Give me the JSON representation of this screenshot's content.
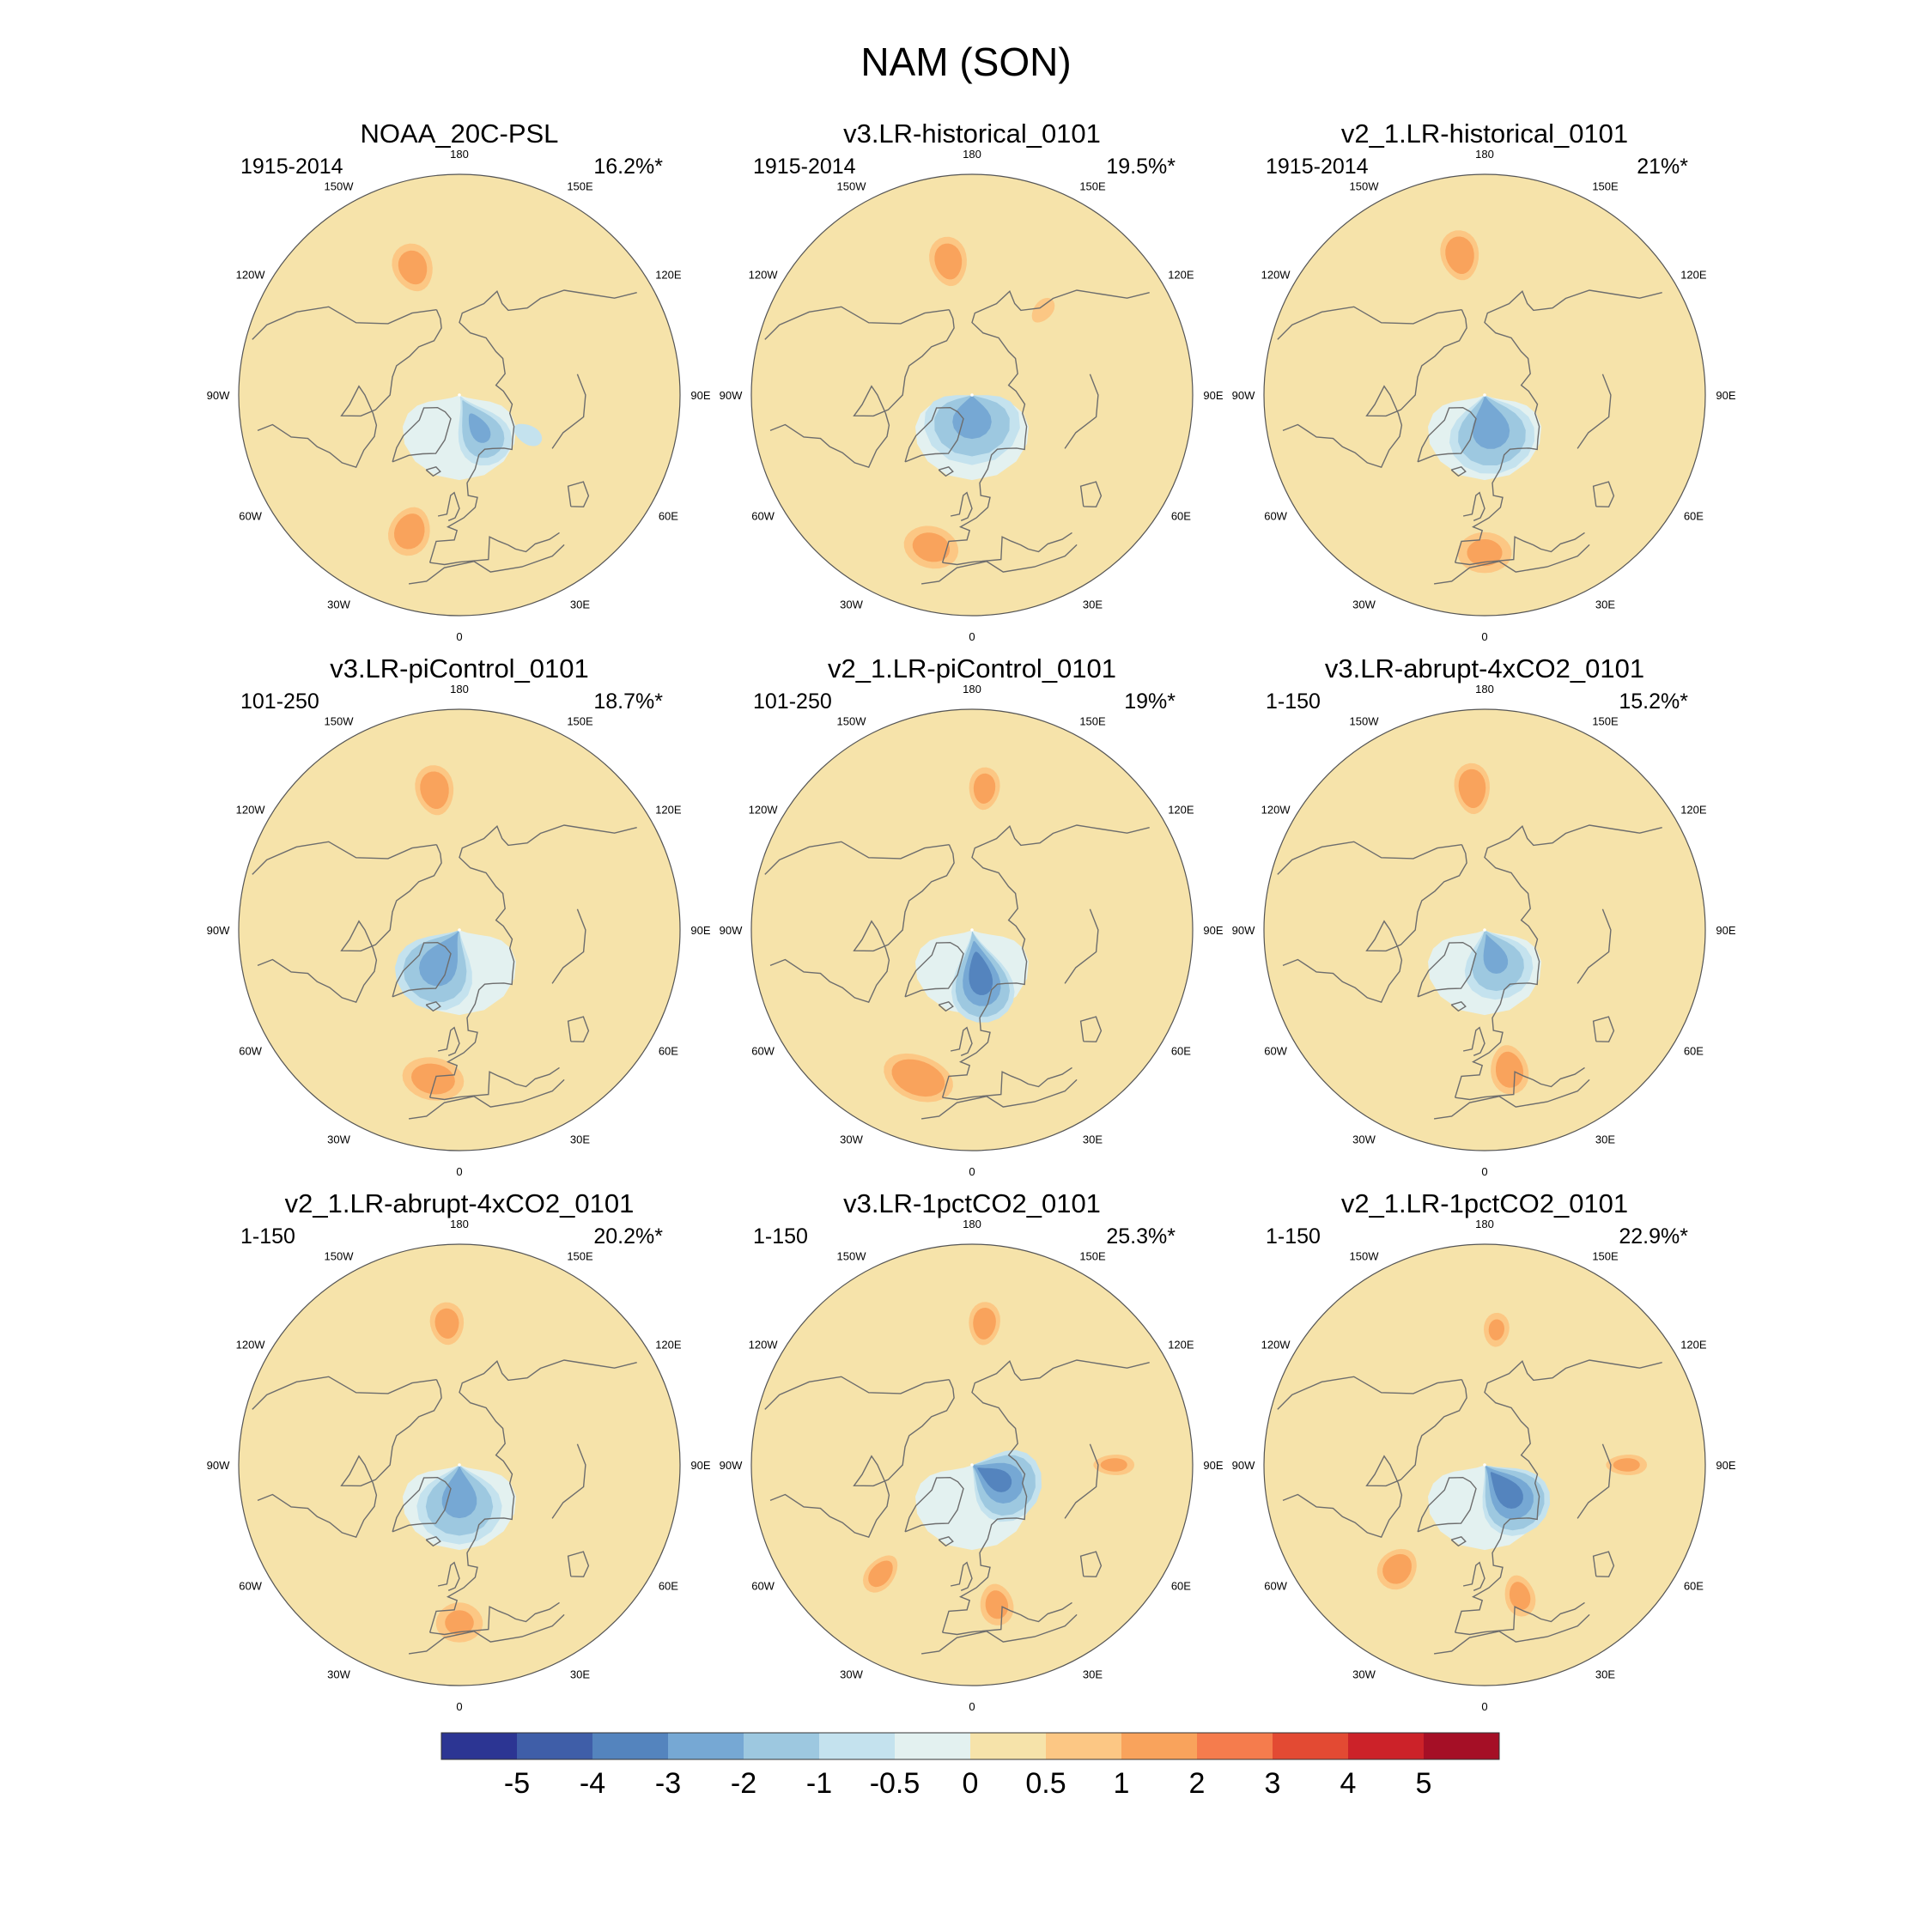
{
  "chart_data": {
    "type": "polar-map-grid",
    "title": "NAM (SON)",
    "variable": "sea level pressure anomaly (NAM pattern)",
    "projection": "north polar stereographic",
    "longitude_labels": [
      "180",
      "150E",
      "120E",
      "90E",
      "60E",
      "30E",
      "0",
      "30W",
      "60W",
      "90W",
      "120W",
      "150W"
    ],
    "panels": [
      {
        "title": "NOAA_20C-PSL",
        "period": "1915-2014",
        "variance": "16.2%*",
        "features": [
          {
            "kind": "max",
            "lon": -160,
            "lat": 47,
            "value": 1.6,
            "rx": 13,
            "ry": 8
          },
          {
            "kind": "max",
            "lon": -20,
            "lat": 44,
            "value": 1.7,
            "rx": 13,
            "ry": 8
          },
          {
            "kind": "min",
            "lon": 30,
            "lat": 78,
            "value": -2.2,
            "rx": 14,
            "ry": 12
          },
          {
            "kind": "min",
            "lon": 60,
            "lat": 65,
            "value": -0.5,
            "rx": 18,
            "ry": 14
          }
        ]
      },
      {
        "title": "v3.LR-historical_0101",
        "period": "1915-2014",
        "variance": "19.5%*",
        "features": [
          {
            "kind": "max",
            "lon": -170,
            "lat": 47,
            "value": 1.7,
            "rx": 12,
            "ry": 8
          },
          {
            "kind": "max",
            "lon": -15,
            "lat": 40,
            "value": 1.5,
            "rx": 18,
            "ry": 7
          },
          {
            "kind": "min",
            "lon": 0,
            "lat": 85,
            "value": -2.6,
            "rx": 16,
            "ry": 16
          },
          {
            "kind": "max",
            "lon": 140,
            "lat": 55,
            "value": 0.9,
            "rx": 8,
            "ry": 6
          }
        ]
      },
      {
        "title": "v2_1.LR-historical_0101",
        "period": "1915-2014",
        "variance": "21%*",
        "features": [
          {
            "kind": "max",
            "lon": -170,
            "lat": 45,
            "value": 1.8,
            "rx": 12,
            "ry": 8
          },
          {
            "kind": "max",
            "lon": 0,
            "lat": 40,
            "value": 1.4,
            "rx": 18,
            "ry": 7
          },
          {
            "kind": "min",
            "lon": 10,
            "lat": 82,
            "value": -2.7,
            "rx": 17,
            "ry": 16
          }
        ]
      },
      {
        "title": "v3.LR-piControl_0101",
        "period": "101-250",
        "variance": "18.7%*",
        "features": [
          {
            "kind": "max",
            "lon": -170,
            "lat": 45,
            "value": 1.8,
            "rx": 12,
            "ry": 8
          },
          {
            "kind": "max",
            "lon": -10,
            "lat": 42,
            "value": 1.6,
            "rx": 20,
            "ry": 7
          },
          {
            "kind": "min",
            "lon": -30,
            "lat": 80,
            "value": -2.8,
            "rx": 17,
            "ry": 16
          }
        ]
      },
      {
        "title": "v2_1.LR-piControl_0101",
        "period": "101-250",
        "variance": "19%*",
        "features": [
          {
            "kind": "max",
            "lon": 175,
            "lat": 45,
            "value": 1.6,
            "rx": 10,
            "ry": 7
          },
          {
            "kind": "max",
            "lon": -20,
            "lat": 40,
            "value": 1.9,
            "rx": 22,
            "ry": 7
          },
          {
            "kind": "min",
            "lon": 10,
            "lat": 76,
            "value": -3.6,
            "rx": 15,
            "ry": 14
          }
        ]
      },
      {
        "title": "v3.LR-abrupt-4xCO2_0101",
        "period": "1-150",
        "variance": "15.2%*",
        "features": [
          {
            "kind": "max",
            "lon": -175,
            "lat": 45,
            "value": 1.9,
            "rx": 11,
            "ry": 8
          },
          {
            "kind": "max",
            "lon": 10,
            "lat": 45,
            "value": 1.7,
            "rx": 12,
            "ry": 8
          },
          {
            "kind": "min",
            "lon": 20,
            "lat": 82,
            "value": -2.3,
            "rx": 15,
            "ry": 14
          }
        ]
      },
      {
        "title": "v2_1.LR-abrupt-4xCO2_0101",
        "period": "1-150",
        "variance": "20.2%*",
        "features": [
          {
            "kind": "max",
            "lon": -175,
            "lat": 45,
            "value": 1.6,
            "rx": 11,
            "ry": 7
          },
          {
            "kind": "max",
            "lon": 0,
            "lat": 40,
            "value": 1.3,
            "rx": 16,
            "ry": 7
          },
          {
            "kind": "min",
            "lon": 0,
            "lat": 82,
            "value": -2.6,
            "rx": 17,
            "ry": 16
          }
        ]
      },
      {
        "title": "v3.LR-1pctCO2_0101",
        "period": "1-150",
        "variance": "25.3%*",
        "features": [
          {
            "kind": "max",
            "lon": 175,
            "lat": 45,
            "value": 1.7,
            "rx": 10,
            "ry": 7
          },
          {
            "kind": "max",
            "lon": -40,
            "lat": 45,
            "value": 1.6,
            "rx": 9,
            "ry": 7
          },
          {
            "kind": "max",
            "lon": 10,
            "lat": 45,
            "value": 1.5,
            "rx": 11,
            "ry": 7
          },
          {
            "kind": "max",
            "lon": 90,
            "lat": 45,
            "value": 1.4,
            "rx": 7,
            "ry": 7
          },
          {
            "kind": "min",
            "lon": 60,
            "lat": 82,
            "value": -3.3,
            "rx": 15,
            "ry": 14
          }
        ]
      },
      {
        "title": "v2_1.LR-1pctCO2_0101",
        "period": "1-150",
        "variance": "22.9%*",
        "features": [
          {
            "kind": "max",
            "lon": 175,
            "lat": 47,
            "value": 1.3,
            "rx": 9,
            "ry": 6
          },
          {
            "kind": "max",
            "lon": -40,
            "lat": 47,
            "value": 1.7,
            "rx": 12,
            "ry": 7
          },
          {
            "kind": "max",
            "lon": 15,
            "lat": 47,
            "value": 1.5,
            "rx": 10,
            "ry": 7
          },
          {
            "kind": "max",
            "lon": 90,
            "lat": 45,
            "value": 1.4,
            "rx": 7,
            "ry": 7
          },
          {
            "kind": "min",
            "lon": 40,
            "lat": 80,
            "value": -3.6,
            "rx": 15,
            "ry": 14
          }
        ]
      }
    ],
    "colorbar": {
      "labels": [
        "-5",
        "-4",
        "-3",
        "-2",
        "-1",
        "-0.5",
        "0",
        "0.5",
        "1",
        "2",
        "3",
        "4",
        "5"
      ],
      "thresholds": [
        -5,
        -4,
        -3,
        -2,
        -1,
        -0.5,
        0,
        0.5,
        1,
        2,
        3,
        4,
        5
      ],
      "colors": [
        "#2c3593",
        "#3f5ea8",
        "#5484be",
        "#76a8d4",
        "#9dc8e0",
        "#c4e2ee",
        "#e3f1f0",
        "#f6e3aa",
        "#fcc784",
        "#f9a35c",
        "#f57c4d",
        "#e34a33",
        "#cc2229",
        "#a50f26"
      ]
    }
  }
}
